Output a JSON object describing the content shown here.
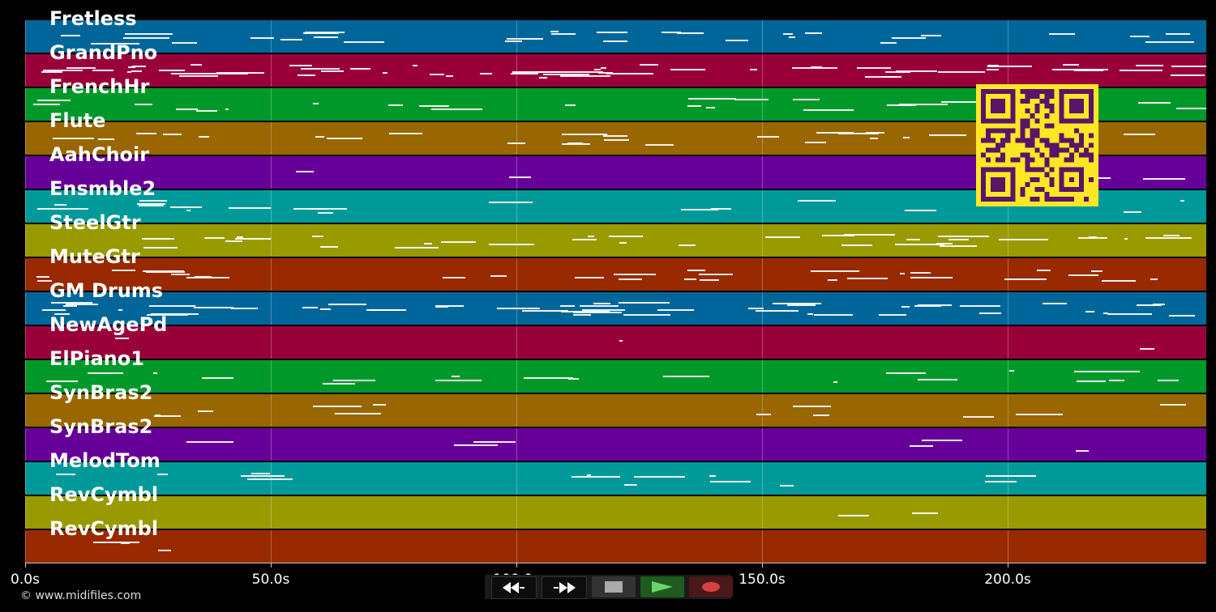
{
  "tracks": [
    {
      "name": "Fretless",
      "color": "#006699"
    },
    {
      "name": "GrandPno",
      "color": "#99003a"
    },
    {
      "name": "FrenchHr",
      "color": "#009929"
    },
    {
      "name": "Flute",
      "color": "#996600"
    },
    {
      "name": "AahChoir",
      "color": "#660099"
    },
    {
      "name": "Ensmble2",
      "color": "#009999"
    },
    {
      "name": "SteelGtr",
      "color": "#999900"
    },
    {
      "name": "MuteGtr",
      "color": "#992900"
    },
    {
      "name": "GM Drums",
      "color": "#006699"
    },
    {
      "name": "NewAgePd",
      "color": "#99003a"
    },
    {
      "name": "ElPiano1",
      "color": "#009929"
    },
    {
      "name": "SynBras2",
      "color": "#996600"
    },
    {
      "name": "SynBras2",
      "color": "#660099"
    },
    {
      "name": "MelodTom",
      "color": "#009999"
    },
    {
      "name": "RevCymbl",
      "color": "#999900"
    },
    {
      "name": "RevCymbl",
      "color": "#992900"
    }
  ],
  "axis": {
    "ticks": [
      {
        "value": 0,
        "label": "0.0s"
      },
      {
        "value": 50,
        "label": "50.0s"
      },
      {
        "value": 100,
        "label": "100.0s"
      },
      {
        "value": 150,
        "label": "150.0s"
      },
      {
        "value": 200,
        "label": "200.0s"
      }
    ],
    "max_seconds": 240.5
  },
  "copyright": "© www.midifiles.com",
  "controls": [
    {
      "name": "rewind-button",
      "icon": "rewind-icon"
    },
    {
      "name": "fast-forward-button",
      "icon": "fast-forward-icon"
    },
    {
      "name": "stop-button",
      "icon": "stop-icon"
    },
    {
      "name": "play-button",
      "icon": "play-icon",
      "color": "#6bd36b"
    },
    {
      "name": "record-button",
      "icon": "record-icon",
      "color": "#d84040"
    }
  ],
  "qr_code": {
    "foreground": "#5a1468",
    "background": "#fde725"
  }
}
